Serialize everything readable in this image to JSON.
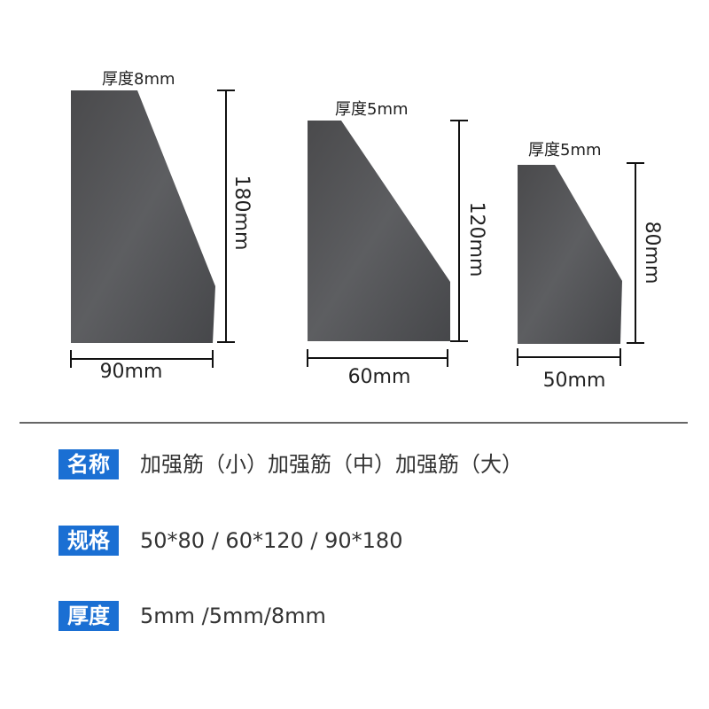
{
  "products": [
    {
      "thickness": "厚度8mm",
      "height": "180mm",
      "width": "90mm"
    },
    {
      "thickness": "厚度5mm",
      "height": "120mm",
      "width": "60mm"
    },
    {
      "thickness": "厚度5mm",
      "height": "80mm",
      "width": "50mm"
    }
  ],
  "specs": [
    {
      "label": "名称",
      "value": "加强筋（小）加强筋（中）加强筋（大）"
    },
    {
      "label": "规格",
      "value": "50*80 / 60*120 / 90*180"
    },
    {
      "label": "厚度",
      "value": "5mm /5mm/8mm"
    }
  ]
}
